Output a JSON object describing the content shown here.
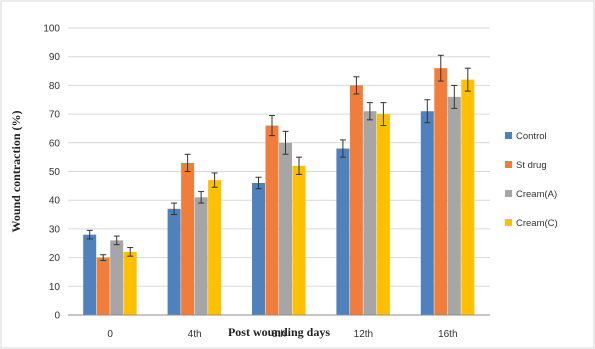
{
  "chart_data": {
    "type": "bar",
    "title": "",
    "xlabel": "Post wounding days",
    "ylabel": "Wound contraction (%)",
    "ylim": [
      0,
      100
    ],
    "yticks": [
      0,
      10,
      20,
      30,
      40,
      50,
      60,
      70,
      80,
      90,
      100
    ],
    "grid": true,
    "legend_position": "right",
    "categories": [
      "0",
      "4th",
      "8th",
      "12th",
      "16th"
    ],
    "series": [
      {
        "name": "Control",
        "color": "#4f81bd",
        "values": [
          28,
          37,
          46,
          58,
          71
        ],
        "errors": [
          1.5,
          2,
          2,
          3,
          4
        ]
      },
      {
        "name": "St drug",
        "color": "#f07d3c",
        "values": [
          20,
          53,
          66,
          80,
          86
        ],
        "errors": [
          1,
          3,
          3.5,
          3,
          4.5
        ]
      },
      {
        "name": "Cream(A)",
        "color": "#a6a6a6",
        "values": [
          26,
          41,
          60,
          71,
          76
        ],
        "errors": [
          1.5,
          2,
          4,
          3,
          4
        ]
      },
      {
        "name": "Cream(C)",
        "color": "#ffc000",
        "values": [
          22,
          47,
          52,
          70,
          82
        ],
        "errors": [
          1.5,
          2.5,
          3,
          4,
          4
        ]
      }
    ]
  }
}
